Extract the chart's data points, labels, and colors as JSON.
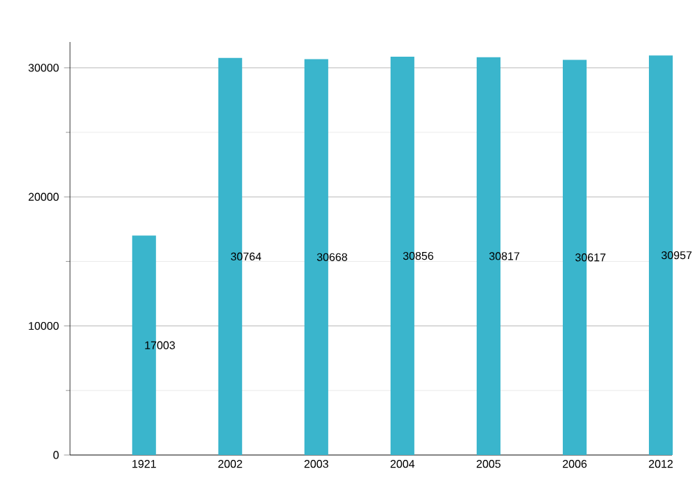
{
  "chart_data": {
    "type": "bar",
    "categories": [
      "1921",
      "2002",
      "2003",
      "2004",
      "2005",
      "2006",
      "2012"
    ],
    "values": [
      17003,
      30764,
      30668,
      30856,
      30817,
      30617,
      30957
    ],
    "color": "#3ab5cc",
    "ylim": [
      0,
      32000
    ],
    "yticks": [
      0,
      {
        "value": 5000,
        "label": null
      },
      10000,
      {
        "value": 15000,
        "label": null
      },
      20000,
      {
        "value": 25000,
        "label": null
      },
      30000
    ],
    "grid": "y",
    "data_labels": true
  }
}
